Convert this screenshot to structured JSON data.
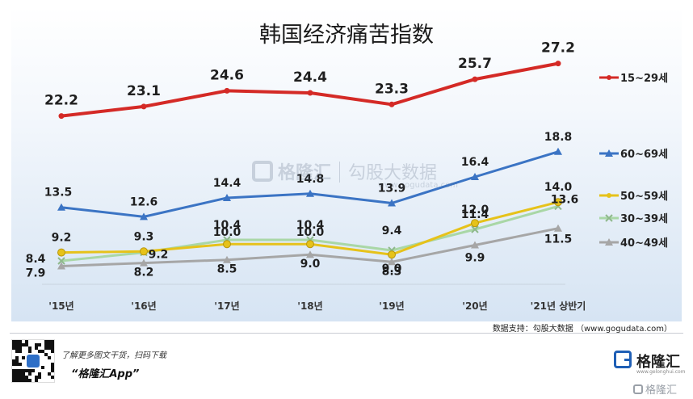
{
  "chart_data": {
    "type": "line",
    "title": "韩国经济痛苦指数",
    "categories": [
      "'15년",
      "'16년",
      "'17년",
      "'18년",
      "'19년",
      "'20년",
      "'21년 상반기"
    ],
    "series": [
      {
        "name": "15~29세",
        "color": "#d42a26",
        "marker": "circle",
        "values": [
          22.2,
          23.1,
          24.6,
          24.4,
          23.3,
          25.7,
          27.2
        ],
        "labels": [
          "22.2",
          "23.1",
          "24.6",
          "24.4",
          "23.3",
          "25.7",
          "27.2"
        ]
      },
      {
        "name": "60~69세",
        "color": "#3b74c4",
        "marker": "triangle",
        "values": [
          13.5,
          12.6,
          14.4,
          14.8,
          13.9,
          16.4,
          18.8
        ],
        "labels": [
          "13.5",
          "12.6",
          "14.4",
          "14.8",
          "13.9",
          "16.4",
          "18.8"
        ]
      },
      {
        "name": "50~59세",
        "color": "#e6c21a",
        "marker": "circle",
        "values": [
          9.2,
          9.3,
          10.0,
          10.0,
          9.0,
          12.0,
          14.0
        ],
        "labels": [
          "9.2",
          "9.3",
          "10.0",
          "10.0",
          "9.0",
          "12.0",
          "14.0"
        ]
      },
      {
        "name": "30~39세",
        "color": "#a9d7a6",
        "marker": "x",
        "values": [
          8.4,
          9.2,
          10.4,
          10.4,
          9.4,
          11.4,
          13.6
        ],
        "labels": [
          "8.4",
          "9.2",
          "10.4",
          "10.4",
          "9.4",
          "11.4",
          "13.6"
        ]
      },
      {
        "name": "40~49세",
        "color": "#a6a6a6",
        "marker": "triangle",
        "values": [
          7.9,
          8.2,
          8.5,
          9.0,
          8.3,
          9.9,
          11.5
        ],
        "labels": [
          "7.9",
          "8.2",
          "8.5",
          "9.0",
          "8.3",
          "9.9",
          "11.5"
        ]
      }
    ],
    "ylim": [
      5,
      29
    ],
    "grid": false,
    "legend_position": "right"
  },
  "footer": {
    "source": "数据支持：勾股大数据 （www.gogudata.com）",
    "scan_text": "了解更多图文干货，扫码下载",
    "app_text": "“格隆汇App”",
    "brand_name": "格隆汇",
    "brand_url": "www.gelonghui.com",
    "bottom_brand": "格隆汇"
  },
  "watermark": {
    "name": "格隆汇",
    "text": "勾股大数据",
    "url": "www.gogudata.com"
  }
}
